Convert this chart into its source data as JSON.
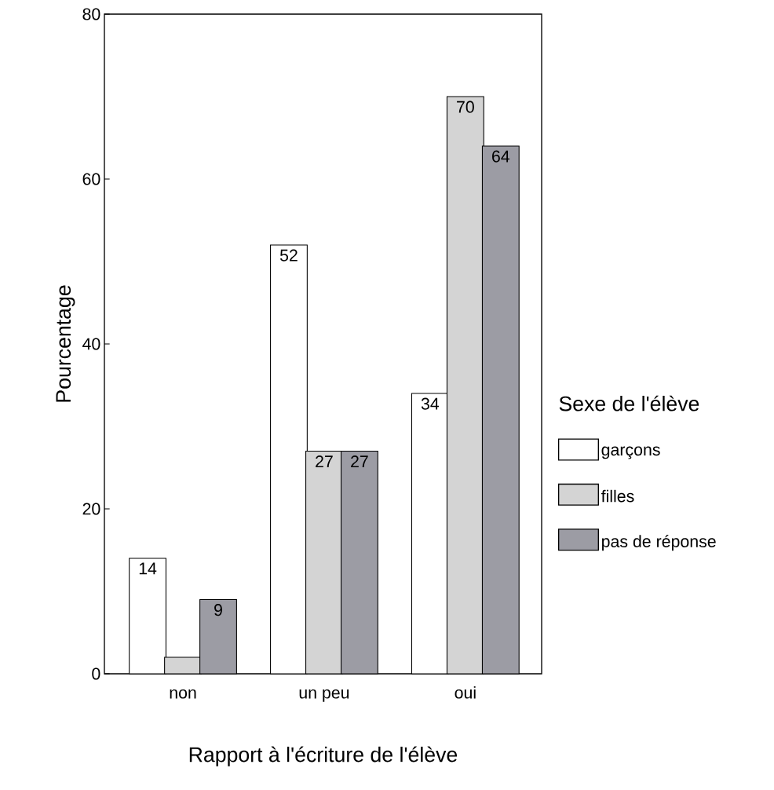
{
  "chart_data": {
    "type": "bar",
    "xlabel": "Rapport à l'écriture de l'élève",
    "ylabel": "Pourcentage",
    "categories": [
      "non",
      "un peu",
      "oui"
    ],
    "series": [
      {
        "name": "garçons",
        "color": "#ffffff",
        "values": [
          14,
          52,
          34
        ],
        "value_labels": [
          "14",
          "52",
          "34"
        ]
      },
      {
        "name": "filles",
        "color": "#d4d4d4",
        "values": [
          2,
          27,
          70
        ],
        "value_labels": [
          null,
          "27",
          "70"
        ]
      },
      {
        "name": "pas de réponse",
        "color": "#9c9ca4",
        "values": [
          9,
          27,
          64
        ],
        "value_labels": [
          "9",
          "27",
          "64"
        ]
      }
    ],
    "ylim": [
      0,
      80
    ],
    "yticks": [
      0,
      20,
      40,
      60,
      80
    ],
    "legend": "right",
    "legend_title": "Sexe de l'élève"
  }
}
